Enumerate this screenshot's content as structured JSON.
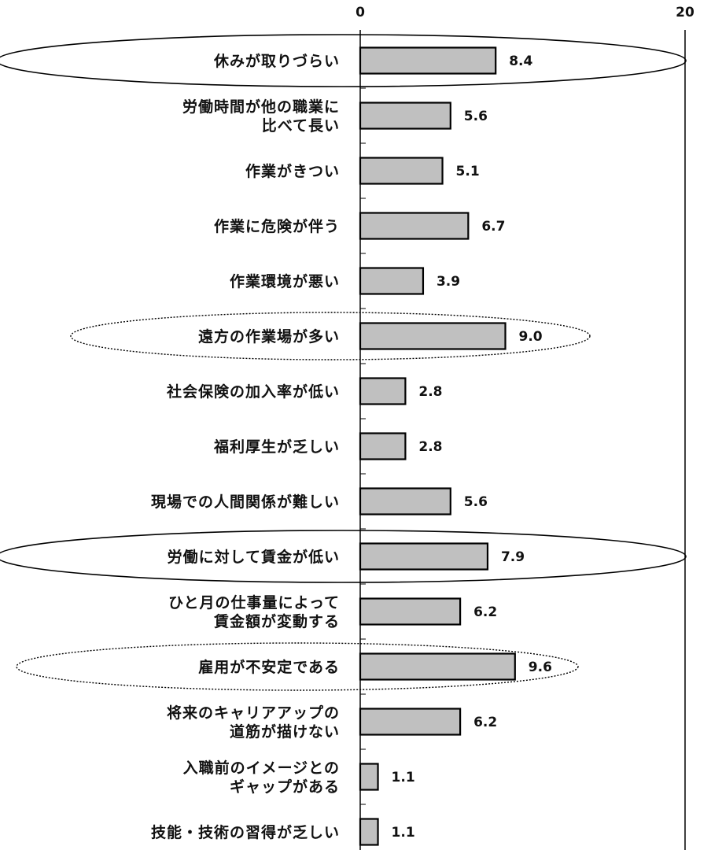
{
  "chart_data": {
    "type": "bar",
    "orientation": "horizontal",
    "categories": [
      [
        "休みが取りづらい"
      ],
      [
        "労働時間が他の職業に",
        "比べて長い"
      ],
      [
        "作業がきつい"
      ],
      [
        "作業に危険が伴う"
      ],
      [
        "作業環境が悪い"
      ],
      [
        "遠方の作業場が多い"
      ],
      [
        "社会保険の加入率が低い"
      ],
      [
        "福利厚生が乏しい"
      ],
      [
        "現場での人間関係が難しい"
      ],
      [
        "労働に対して賃金が低い"
      ],
      [
        "ひと月の仕事量によって",
        "賃金額が変動する"
      ],
      [
        "雇用が不安定である"
      ],
      [
        "将来のキャリアアップの",
        "道筋が描けない"
      ],
      [
        "入職前のイメージとの",
        "ギャップがある"
      ],
      [
        "技能・技術の習得が乏しい"
      ]
    ],
    "values": [
      8.4,
      5.6,
      5.1,
      6.7,
      3.9,
      9.0,
      2.8,
      2.8,
      5.6,
      7.9,
      6.2,
      9.6,
      6.2,
      1.1,
      1.1
    ],
    "value_labels": [
      "8.4",
      "5.6",
      "5.1",
      "6.7",
      "3.9",
      "9.0",
      "2.8",
      "2.8",
      "5.6",
      "7.9",
      "6.2",
      "9.6",
      "6.2",
      "1.1",
      "1.1"
    ],
    "xlim": [
      0,
      20
    ],
    "tick_labels": [
      "0",
      "20"
    ],
    "highlight_solid": [
      0,
      9
    ],
    "highlight_dotted": [
      5,
      11
    ],
    "colors": {
      "bar_fill": "#c0c0c0",
      "bar_stroke": "#000000",
      "text": "#111111"
    }
  }
}
